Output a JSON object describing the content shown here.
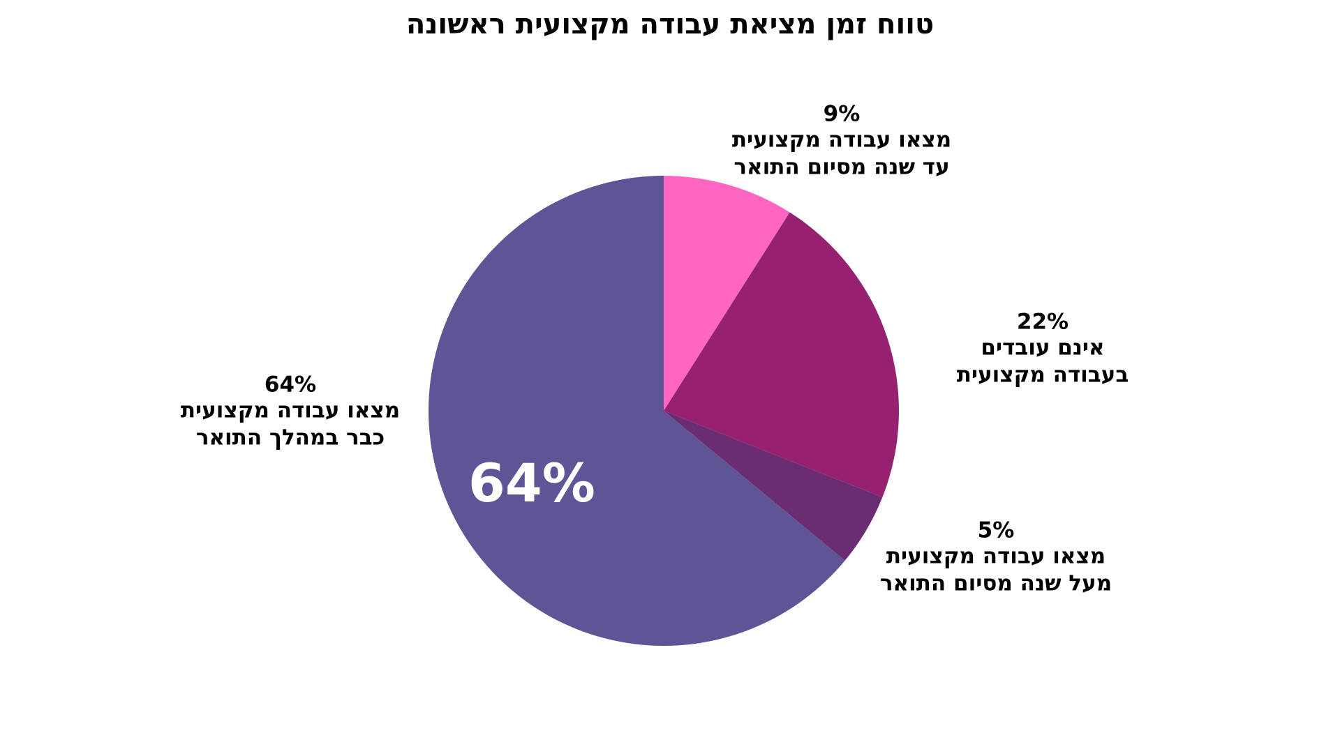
{
  "chart_data": {
    "type": "pie",
    "title": "טווח זמן מציאת עבודה מקצועית ראשונה",
    "categories": [
      [
        "מצאו עבודה מקצועית",
        "עד שנה מסיום התואר"
      ],
      [
        "אינם עובדים",
        "בעבודה מקצועית"
      ],
      [
        "מצאו עבודה מקצועית",
        "מעל שנה מסיום התואר"
      ],
      [
        "מצאו עבודה מקצועית",
        "כבר במהלך התואר"
      ]
    ],
    "values": [
      9,
      22,
      5,
      64
    ],
    "value_labels": [
      "9%",
      "22%",
      "5%",
      "64%"
    ],
    "colors": [
      "#ff66c4",
      "#952170",
      "#6a2d72",
      "#5f5496"
    ]
  }
}
